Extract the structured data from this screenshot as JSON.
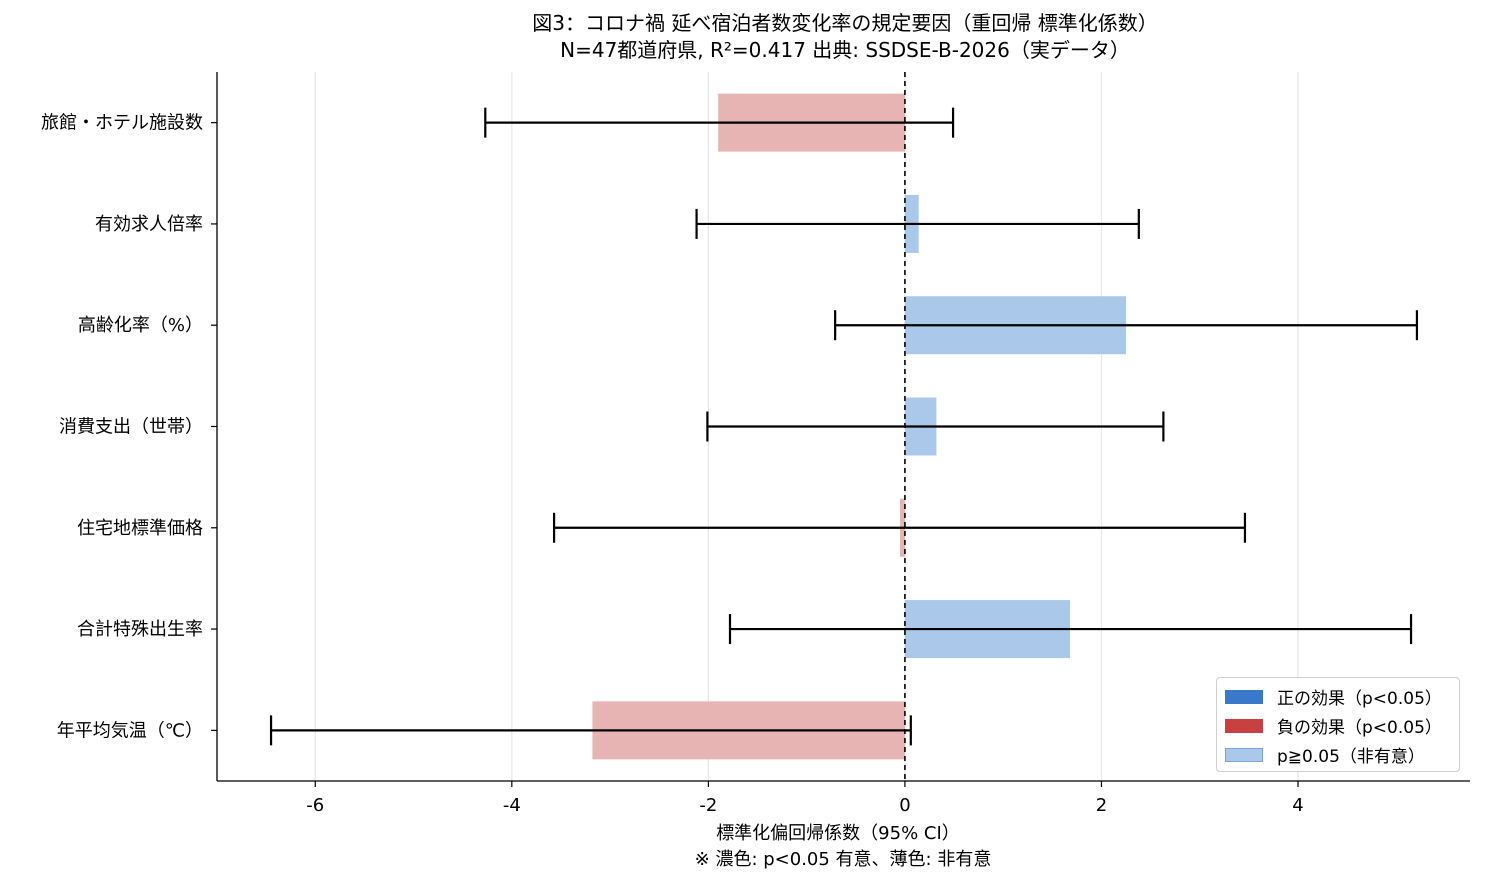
{
  "chart_data": {
    "type": "bar",
    "orientation": "horizontal",
    "title": "図3：コロナ禍 延べ宿泊者数変化率の規定要因（重回帰 標準化係数）",
    "subtitle": "N=47都道府県, R²=0.417  出典: SSDSE-B-2026（実データ）",
    "xlabel": "標準化偏回帰係数（95% CI）",
    "note": "※ 濃色: p<0.05 有意、薄色: 非有意",
    "xlim": [
      -7.0,
      5.75
    ],
    "xticks": [
      -6,
      -4,
      -2,
      0,
      2,
      4
    ],
    "xtick_labels": [
      "-6",
      "-4",
      "-2",
      "0",
      "2",
      "4"
    ],
    "grid": "vertical",
    "reference_line": 0,
    "categories": [
      "旅館・ホテル施設数",
      "有効求人倍率",
      "高齢化率（%）",
      "消費支出（世帯）",
      "住宅地標準価格",
      "合計特殊出生率",
      "年平均気温（℃）"
    ],
    "coefficients": [
      -1.9,
      0.14,
      2.25,
      0.32,
      -0.05,
      1.68,
      -3.18
    ],
    "ci_lower": [
      -4.27,
      -2.12,
      -0.71,
      -2.01,
      -3.57,
      -1.78,
      -6.45
    ],
    "ci_upper": [
      0.49,
      2.38,
      5.21,
      2.63,
      3.46,
      5.15,
      0.06
    ],
    "significant": [
      false,
      false,
      false,
      false,
      false,
      false,
      false
    ],
    "colors": {
      "pos_sig": "#3a78c9",
      "neg_sig": "#c94040",
      "pos_ns": "#aac8ea",
      "neg_ns": "#e8b4b3"
    },
    "legend": {
      "placement": "bottom-right",
      "items": [
        {
          "label": "正の効果（p<0.05）",
          "color_key": "pos_sig"
        },
        {
          "label": "負の効果（p<0.05）",
          "color_key": "neg_sig"
        },
        {
          "label": "p≧0.05（非有意）",
          "color_key": "pos_ns"
        }
      ]
    }
  }
}
